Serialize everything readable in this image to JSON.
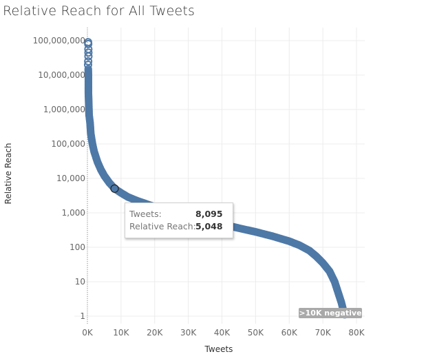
{
  "chart_data": {
    "type": "scatter",
    "title": "Relative Reach for All Tweets",
    "xlabel": "Tweets",
    "ylabel": "Relative Reach",
    "xlim": [
      -4000,
      80000
    ],
    "ylim": [
      1,
      100000000
    ],
    "yscale": "log",
    "x_ticks": [
      "0K",
      "10K",
      "20K",
      "30K",
      "40K",
      "50K",
      "60K",
      "70K",
      "80K"
    ],
    "y_ticks": [
      "1",
      "10",
      "100",
      "1,000",
      "10,000",
      "100,000",
      "1,000,000",
      "10,000,000",
      "100,000,000"
    ],
    "grid": true,
    "series": [
      {
        "color": "#4e79a7",
        "points": [
          [
            200,
            90000000
          ],
          [
            250,
            80000000
          ],
          [
            300,
            45000000
          ],
          [
            300,
            35000000
          ],
          [
            200,
            20000000
          ],
          [
            250,
            15000000
          ],
          [
            300,
            10000000
          ],
          [
            300,
            6000000
          ],
          [
            300,
            3000000
          ],
          [
            400,
            1500000
          ],
          [
            500,
            700000
          ],
          [
            800,
            400000
          ],
          [
            1000,
            200000
          ],
          [
            1500,
            100000
          ],
          [
            2000,
            60000
          ],
          [
            3000,
            30000
          ],
          [
            4000,
            18000
          ],
          [
            5000,
            12000
          ],
          [
            6500,
            7500
          ],
          [
            8095,
            5048
          ],
          [
            10000,
            3800
          ],
          [
            12000,
            2900
          ],
          [
            15000,
            2200
          ],
          [
            20000,
            1500
          ],
          [
            25000,
            1100
          ],
          [
            30000,
            820
          ],
          [
            35000,
            620
          ],
          [
            40000,
            470
          ],
          [
            45000,
            360
          ],
          [
            50000,
            280
          ],
          [
            55000,
            210
          ],
          [
            60000,
            150
          ],
          [
            63000,
            115
          ],
          [
            66000,
            80
          ],
          [
            68000,
            55
          ],
          [
            70000,
            35
          ],
          [
            72000,
            20
          ],
          [
            73500,
            10
          ],
          [
            74500,
            5
          ],
          [
            75500,
            2.5
          ],
          [
            76000,
            1.6
          ],
          [
            76500,
            1.1
          ]
        ]
      }
    ],
    "highlighted_point": {
      "x": 8095,
      "y": 5048
    },
    "reference_line_x": 0
  },
  "tooltip": {
    "tweets_label": "Tweets:",
    "tweets_value": "8,095",
    "reach_label": "Relative Reach:",
    "reach_value": "5,048"
  },
  "negative_badge": ">10K negative"
}
